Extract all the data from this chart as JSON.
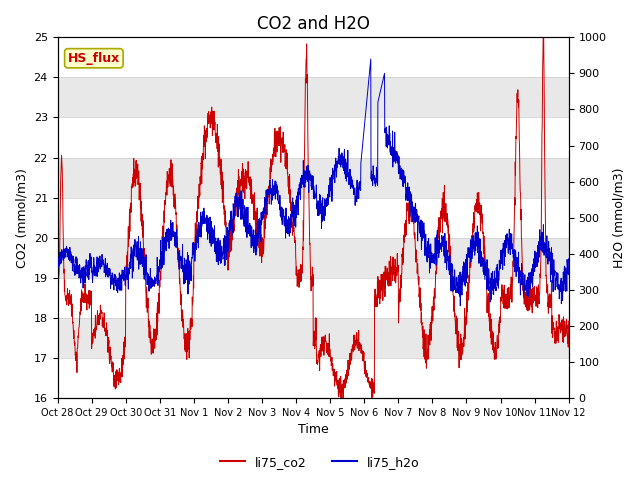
{
  "title": "CO2 and H2O",
  "xlabel": "Time",
  "ylabel_left": "CO2 (mmol/m3)",
  "ylabel_right": "H2O (mmol/m3)",
  "ylim_left": [
    16.0,
    25.0
  ],
  "ylim_right": [
    0,
    1000
  ],
  "yticks_left": [
    16.0,
    17.0,
    18.0,
    19.0,
    20.0,
    21.0,
    22.0,
    23.0,
    24.0,
    25.0
  ],
  "yticks_right": [
    0,
    100,
    200,
    300,
    400,
    500,
    600,
    700,
    800,
    900,
    1000
  ],
  "xtick_labels": [
    "Oct 28",
    "Oct 29",
    "Oct 30",
    "Oct 31",
    "Nov 1",
    "Nov 2",
    "Nov 3",
    "Nov 4",
    "Nov 5",
    "Nov 6",
    "Nov 7",
    "Nov 8",
    "Nov 9",
    "Nov 10",
    "Nov 11",
    "Nov 12"
  ],
  "color_co2": "#cc0000",
  "color_h2o": "#0000cc",
  "legend_co2": "li75_co2",
  "legend_h2o": "li75_h2o",
  "annotation_text": "HS_flux",
  "annotation_color": "#cc0000",
  "annotation_bg": "#ffffcc",
  "annotation_border": "#aaa800",
  "background_color": "#ffffff",
  "band_color": "#e8e8e8",
  "title_fontsize": 12
}
